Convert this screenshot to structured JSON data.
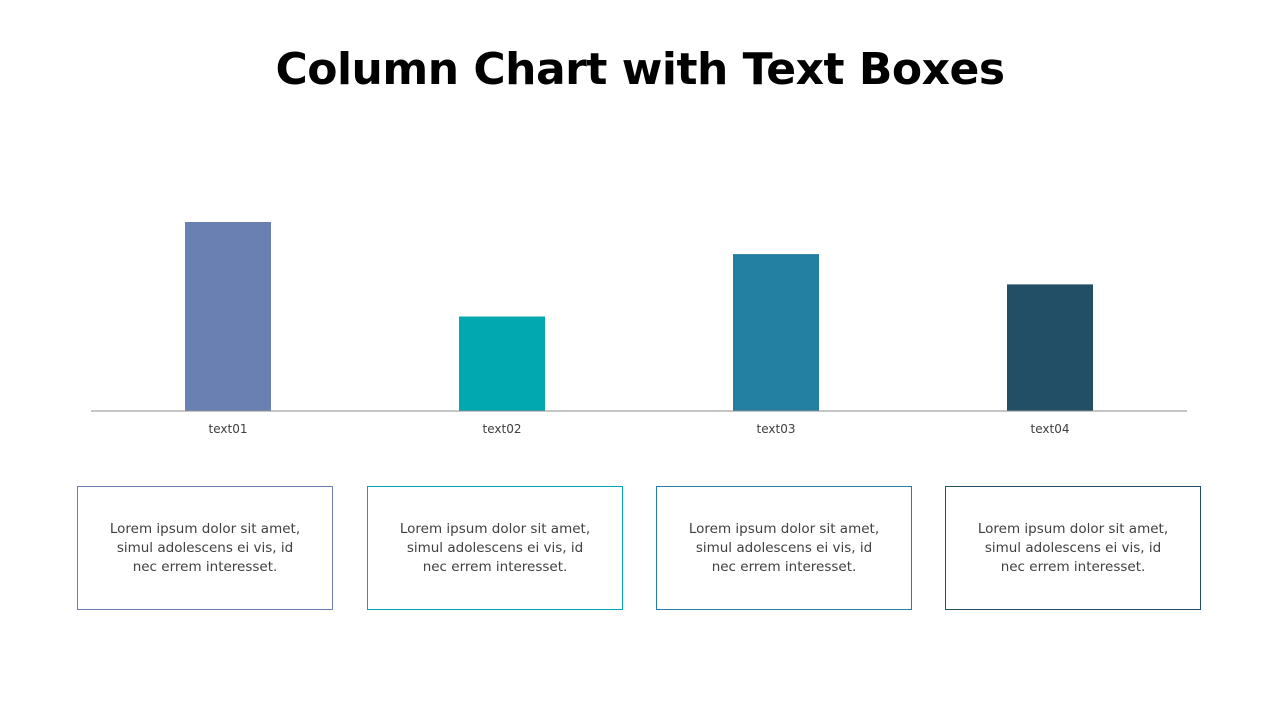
{
  "title": "Column Chart with Text Boxes",
  "chart_data": {
    "type": "bar",
    "categories": [
      "text01",
      "text02",
      "text03",
      "text04"
    ],
    "values": [
      100,
      50,
      83,
      67
    ],
    "colors": [
      "#6b80b2",
      "#02a8b0",
      "#2480a3",
      "#224e66"
    ],
    "ylim": [
      0,
      100
    ],
    "grid": false,
    "xlabel": "",
    "ylabel": ""
  },
  "text_boxes": [
    {
      "text": "Lorem ipsum dolor sit amet, simul adolescens ei vis, id nec errem interesset.",
      "border_color": "#6b80b2"
    },
    {
      "text": "Lorem ipsum dolor sit amet, simul adolescens ei vis, id nec errem interesset.",
      "border_color": "#02a8b0"
    },
    {
      "text": "Lorem ipsum dolor sit amet, simul adolescens ei vis, id nec errem interesset.",
      "border_color": "#2480a3"
    },
    {
      "text": "Lorem ipsum dolor sit amet, simul adolescens ei vis, id nec errem interesset.",
      "border_color": "#224e66"
    }
  ]
}
